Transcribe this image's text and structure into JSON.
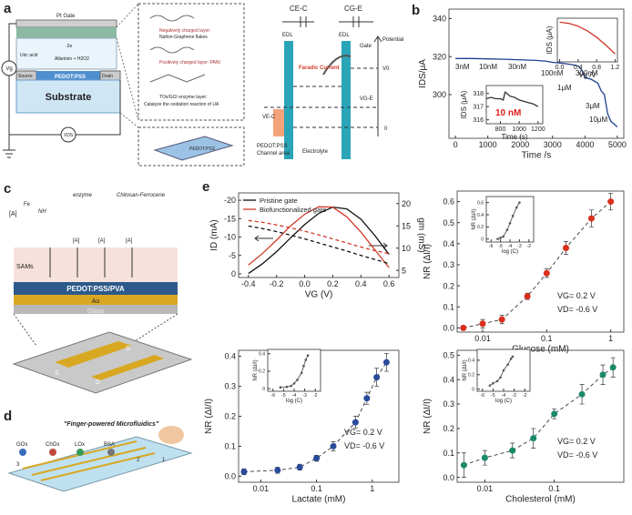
{
  "panel_labels": [
    "a",
    "b",
    "c",
    "d",
    "e"
  ],
  "diagram_a": {
    "pt_gate": "Pt Gate",
    "vg": "Vg",
    "uric_acid": "Uric acid",
    "electrons": "-2e",
    "allantoin": "Allantoin + H2O2",
    "source": "Source",
    "channel": "PEDOT:PSS",
    "drain": "Drain",
    "substrate": "Substrate",
    "vds": "VDS",
    "layer_neg": "Negatively charged layer:",
    "layer_neg_desc": "Nafion-Graphene flakes",
    "layer_pos": "Positively charged layer: PANI",
    "layer_enz": "TOx/GO/ enzyme layer:",
    "layer_enz_desc": "Catalyze the oxidation reaction of UA",
    "device_label": "PEDOT:PSS",
    "c_ec": "CE-C",
    "c_ge": "CG-E",
    "edl_left": "EDL",
    "edl_right": "EDL",
    "gate": "Gate",
    "faradic": "Faradic Current",
    "potential": "Potential",
    "v0": "V0",
    "vge": "VG-E",
    "vec": "VE-C",
    "zero": "0",
    "channel_area": "PEDOT:PSS",
    "channel_area2": "Channel area",
    "electrolyte": "Electrolyte"
  },
  "diagram_c": {
    "analyte": "[A]",
    "fe": "Fe",
    "nh": "NH",
    "enzyme": "enzyme",
    "chitosan": "Chitosan-Ferrocene",
    "analytes": [
      "[A]",
      "[A]",
      "[A]"
    ],
    "sams": "SAMs",
    "pedot": "PEDOT:PSS/PVA",
    "au": "Au",
    "glass": "Glass",
    "g": "G",
    "s": "S",
    "d": "D"
  },
  "diagram_d": {
    "title": "\"Finger-powered Microfluidics\"",
    "gox": "GOx",
    "chox": "ChOx",
    "lox": "LOx",
    "bsa": "BSA",
    "n1": "1",
    "n2": "2",
    "n3": "3"
  },
  "chart_data": [
    {
      "type": "line",
      "xlabel": "Time /s",
      "ylabel": "IDS/μA",
      "xlim": [
        -200,
        5200
      ],
      "ylim": [
        277,
        345
      ],
      "xticks": [
        0,
        1000,
        2000,
        3000,
        4000,
        5000
      ],
      "yticks": [
        300,
        320,
        340
      ],
      "x": [
        0,
        500,
        1000,
        1500,
        2000,
        2500,
        2800,
        3000,
        3300,
        3600,
        3800,
        3900,
        4000,
        4200,
        4400,
        4500,
        4600,
        4700,
        4800,
        5000
      ],
      "series": [
        {
          "color": "#1f3f8f",
          "values": [
            319,
            319,
            318.8,
            318.6,
            318.3,
            318,
            317.6,
            317,
            316.5,
            315.8,
            315,
            313,
            309,
            308,
            306,
            302,
            300,
            290,
            286,
            283
          ]
        }
      ],
      "annotations": [
        "3nM",
        "10nM",
        "30nM",
        "100nM",
        "300nM",
        "1μM",
        "3μM",
        "10μM"
      ]
    },
    {
      "type": "line",
      "xlabel": "Vg /V",
      "ylabel": "IDS (μA)",
      "xlim": [
        -0.05,
        1.25
      ],
      "ylim": [
        0,
        1.1
      ],
      "xticks": [
        {
          "value": 0,
          "label": "0.0"
        },
        0.4,
        0.8,
        1.2
      ],
      "x": [
        0,
        0.2,
        0.4,
        0.6,
        0.8,
        1.0,
        1.2
      ],
      "series": [
        {
          "color": "#d03a2a",
          "values": [
            1,
            0.97,
            0.9,
            0.78,
            0.62,
            0.42,
            0.2
          ]
        }
      ]
    },
    {
      "type": "line",
      "xlabel": "Time (s)",
      "ylabel": "IDS (μA)",
      "xlim": [
        650,
        1250
      ],
      "ylim": [
        315.7,
        318.6
      ],
      "xticks": [
        800,
        1000,
        1200
      ],
      "yticks": [
        316,
        317,
        318
      ],
      "x": [
        650,
        700,
        750,
        800,
        830,
        850,
        870,
        900,
        950,
        1000,
        1050,
        1100,
        1150,
        1200
      ],
      "series": [
        {
          "color": "#333333",
          "values": [
            317.6,
            317.7,
            317.6,
            317.6,
            317.5,
            318.1,
            318.0,
            317.8,
            317.7,
            317.5,
            317.4,
            317.3,
            317.2,
            317.0
          ]
        }
      ],
      "annotations": [
        "10 nM"
      ]
    },
    {
      "type": "line",
      "xlabel": "VG (V)",
      "ylabel": "ID (mA)",
      "y2label": "gm (mS)",
      "xlim": [
        -0.47,
        0.67
      ],
      "ylim": [
        1,
        -22
      ],
      "y2lim": [
        3.4,
        22.4
      ],
      "xticks": [
        -0.4,
        -0.2,
        {
          "value": 0,
          "label": "0.0"
        },
        0.2,
        0.4,
        0.6
      ],
      "yticks": [
        -20,
        -15,
        -10,
        -5,
        0
      ],
      "y2ticks": [
        5,
        10,
        15,
        20
      ],
      "legend": "upper left",
      "x": [
        -0.4,
        -0.3,
        -0.2,
        -0.1,
        0.0,
        0.1,
        0.2,
        0.3,
        0.4,
        0.5,
        0.6
      ],
      "series": [
        {
          "name": "Pristine gate",
          "color": "#111111",
          "axis": "y2",
          "values": [
            4.3,
            6.5,
            9.2,
            12.3,
            15.3,
            17.8,
            19.2,
            18.8,
            16.5,
            12.8,
            8.6
          ]
        },
        {
          "name": "Biofunctionalized gate",
          "color": "#d03a2a",
          "axis": "y2",
          "values": [
            6.2,
            8.8,
            11.8,
            15,
            17.6,
            19.3,
            19.2,
            17,
            13.6,
            9.6,
            5.6
          ]
        },
        {
          "color": "#111111",
          "line_style": "dashed",
          "values": [
            -13,
            -12.3,
            -11.5,
            -10.5,
            -9.5,
            -8.4,
            -7.3,
            -6.2,
            -5,
            -3.9,
            -2.8
          ]
        },
        {
          "color": "#d03a2a",
          "line_style": "dashed",
          "values": [
            -14.5,
            -14,
            -13.3,
            -12.5,
            -11.6,
            -10.6,
            -9.5,
            -8.4,
            -7.3,
            -6.3,
            -5.5
          ]
        }
      ]
    },
    {
      "type": "scatter",
      "xscale": "log",
      "xlabel": "Glucose (mM)",
      "ylabel": "NR (ΔI/I)",
      "xlim": [
        0.004,
        1.6
      ],
      "ylim": [
        -0.02,
        0.65
      ],
      "xticks": [
        0.01,
        0.1,
        1
      ],
      "yticks": [
        {
          "value": 0,
          "label": "0.0"
        },
        0.1,
        0.2,
        0.3,
        0.4,
        0.5,
        0.6
      ],
      "x": [
        0.005,
        0.01,
        0.02,
        0.05,
        0.1,
        0.2,
        0.5,
        1
      ],
      "series": [
        {
          "color": "#d9301e",
          "line_color": "#333333",
          "line_style": "dashed",
          "values": [
            0.0,
            0.02,
            0.04,
            0.15,
            0.26,
            0.38,
            0.52,
            0.6
          ],
          "errors": [
            0.01,
            0.02,
            0.02,
            0.015,
            0.02,
            0.03,
            0.04,
            0.04
          ]
        }
      ],
      "annotations": [
        "VG= 0.2 V",
        "VD= -0.6 V"
      ]
    },
    {
      "type": "scatter",
      "xlabel": "log (C)",
      "ylabel": "NR (ΔI/I)",
      "xlim": [
        -6.5,
        -1.5
      ],
      "ylim": [
        -0.05,
        0.7
      ],
      "xticks": [
        -6,
        -5,
        -4,
        -3,
        -2
      ],
      "yticks": [
        0,
        0.2,
        0.4,
        0.6
      ],
      "x": [
        -5.3,
        -5,
        -4.7,
        -4.3,
        -4,
        -3.7,
        -3.3,
        -3
      ],
      "series": [
        {
          "color": "#555555",
          "line_color": "#555555",
          "line_style": "solid",
          "values": [
            0,
            0.02,
            0.04,
            0.15,
            0.26,
            0.38,
            0.52,
            0.6
          ]
        }
      ]
    },
    {
      "type": "scatter",
      "xscale": "log",
      "xlabel": "Lactate (mM)",
      "ylabel": "NR (ΔI/I)",
      "xlim": [
        0.004,
        3
      ],
      "ylim": [
        -0.02,
        0.42
      ],
      "xticks": [
        0.01,
        0.1,
        1
      ],
      "yticks": [
        {
          "value": 0,
          "label": "0.0"
        },
        0.1,
        0.2,
        0.3,
        0.4
      ],
      "x": [
        0.005,
        0.02,
        0.05,
        0.1,
        0.2,
        0.5,
        0.8,
        1.2,
        1.8
      ],
      "series": [
        {
          "color": "#2a4b9b",
          "line_color": "#333333",
          "line_style": "dashed",
          "values": [
            0.015,
            0.02,
            0.03,
            0.06,
            0.1,
            0.18,
            0.26,
            0.33,
            0.38
          ],
          "errors": [
            0.01,
            0.01,
            0.01,
            0.01,
            0.015,
            0.02,
            0.02,
            0.03,
            0.03
          ]
        }
      ],
      "annotations": [
        "VG= 0.2 V",
        "VD= -0.6 V"
      ]
    },
    {
      "type": "scatter",
      "xlabel": "log (C)",
      "ylabel": "NR (ΔI/I)",
      "xlim": [
        -6.5,
        -1.5
      ],
      "ylim": [
        -0.03,
        0.45
      ],
      "xticks": [
        -6,
        -5,
        -4,
        -3,
        -2
      ],
      "yticks": [
        0,
        0.2,
        0.4
      ],
      "x": [
        -5.3,
        -4.7,
        -4.3,
        -4,
        -3.7,
        -3.3,
        -3.1,
        -2.9,
        -2.7
      ],
      "series": [
        {
          "color": "#555555",
          "line_color": "#555555",
          "line_style": "solid",
          "values": [
            0.015,
            0.02,
            0.03,
            0.06,
            0.1,
            0.18,
            0.26,
            0.33,
            0.38
          ]
        }
      ]
    },
    {
      "type": "scatter",
      "xscale": "log",
      "xlabel": "Cholesterol (mM)",
      "ylabel": "NR (ΔI/I)",
      "xlim": [
        0.004,
        1
      ],
      "ylim": [
        -0.02,
        0.52
      ],
      "xticks": [
        0.01,
        0.1
      ],
      "yticks": [
        {
          "value": 0,
          "label": "0.0"
        },
        0.1,
        0.2,
        0.3,
        0.4,
        0.5
      ],
      "x": [
        0.005,
        0.01,
        0.025,
        0.05,
        0.1,
        0.25,
        0.5,
        0.7
      ],
      "series": [
        {
          "color": "#1a8a6a",
          "line_color": "#333333",
          "line_style": "dashed",
          "values": [
            0.05,
            0.08,
            0.11,
            0.16,
            0.26,
            0.34,
            0.42,
            0.45
          ],
          "errors": [
            0.05,
            0.03,
            0.03,
            0.04,
            0.02,
            0.04,
            0.04,
            0.04
          ]
        }
      ],
      "annotations": [
        "VG= 0.2 V",
        "VD= -0.6 V"
      ]
    },
    {
      "type": "scatter",
      "xlabel": "log (C)",
      "ylabel": "NR (ΔI/I)",
      "xlim": [
        -6.5,
        -1.5
      ],
      "ylim": [
        -0.03,
        0.55
      ],
      "xticks": [
        -6,
        -5,
        -4,
        -3,
        -2
      ],
      "yticks": [
        0,
        0.2,
        0.4
      ],
      "x": [
        -5.3,
        -5,
        -4.6,
        -4.3,
        -4,
        -3.6,
        -3.3,
        -3.15
      ],
      "series": [
        {
          "color": "#555555",
          "line_color": "#555555",
          "line_style": "solid",
          "values": [
            0.05,
            0.08,
            0.11,
            0.16,
            0.26,
            0.34,
            0.42,
            0.45
          ]
        }
      ]
    }
  ]
}
